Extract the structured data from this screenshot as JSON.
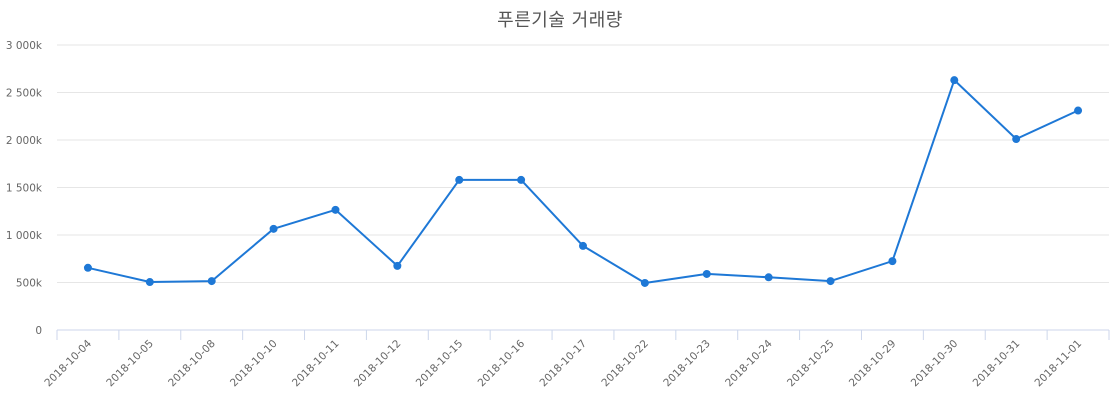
{
  "chart_data": {
    "type": "line",
    "title": "푸른기술 거래량",
    "xlabel": "",
    "ylabel": "",
    "ylim": [
      0,
      3000
    ],
    "y_unit": "k",
    "y_ticks": [
      "0",
      "500k",
      "1 000k",
      "1 500k",
      "2 000k",
      "2 500k",
      "3 000k"
    ],
    "grid": true,
    "legend": "none",
    "categories": [
      "2018-10-04",
      "2018-10-05",
      "2018-10-08",
      "2018-10-10",
      "2018-10-11",
      "2018-10-12",
      "2018-10-15",
      "2018-10-16",
      "2018-10-17",
      "2018-10-22",
      "2018-10-23",
      "2018-10-24",
      "2018-10-25",
      "2018-10-29",
      "2018-10-30",
      "2018-10-31",
      "2018-11-01"
    ],
    "series": [
      {
        "name": "거래량",
        "color": "#1e78d6",
        "values": [
          655,
          505,
          515,
          1065,
          1265,
          675,
          1580,
          1580,
          885,
          495,
          590,
          555,
          515,
          725,
          2630,
          2010,
          2310
        ]
      }
    ]
  },
  "colors": {
    "line": "#1e78d6",
    "grid": "#e6e6e6",
    "axis": "#ccd6eb",
    "text": "#666666",
    "title": "#555555"
  }
}
